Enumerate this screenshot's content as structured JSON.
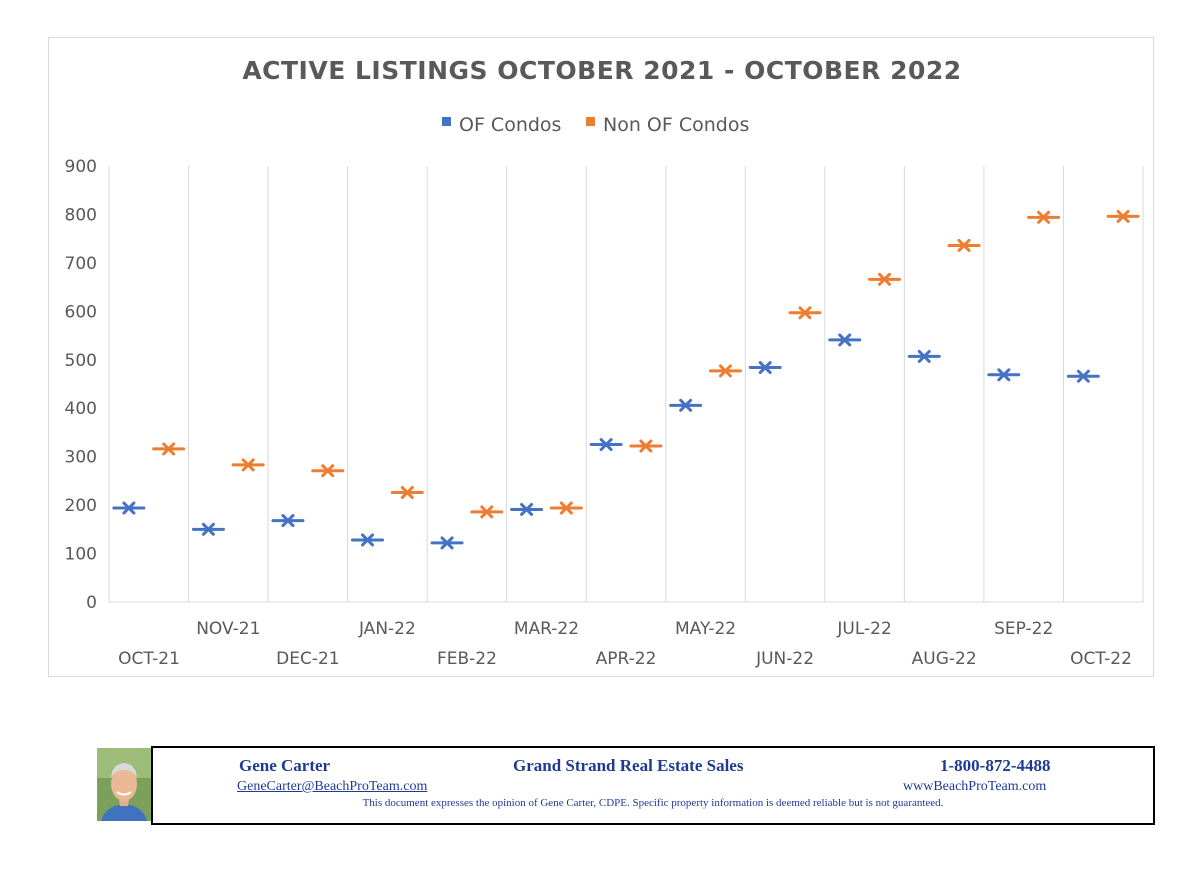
{
  "chart_data": {
    "type": "scatter",
    "title": "ACTIVE LISTINGS  OCTOBER 2021 - OCTOBER 2022",
    "categories": [
      "OCT-21",
      "NOV-21",
      "DEC-21",
      "JAN-22",
      "FEB-22",
      "MAR-22",
      "APR-22",
      "MAY-22",
      "JUN-22",
      "JUL-22",
      "AUG-22",
      "SEP-22",
      "OCT-22"
    ],
    "series": [
      {
        "name": "OF Condos",
        "color": "#4472c4",
        "values": [
          194,
          150,
          168,
          128,
          122,
          191,
          325,
          406,
          484,
          541,
          507,
          469,
          466
        ]
      },
      {
        "name": "Non OF Condos",
        "color": "#ed7d31",
        "values": [
          316,
          283,
          271,
          226,
          186,
          194,
          322,
          477,
          597,
          666,
          736,
          794,
          796
        ]
      }
    ],
    "ylim": [
      0,
      900
    ],
    "yticks": [
      "0",
      "100",
      "200",
      "300",
      "400",
      "500",
      "600",
      "700",
      "800",
      "900"
    ],
    "grid": "vertical",
    "legend": "top",
    "marker": "x-cross"
  },
  "footer": {
    "name": "Gene Carter",
    "company": "Grand Strand Real Estate Sales",
    "phone": "1-800-872-4488",
    "email": "GeneCarter@BeachProTeam.com",
    "website": "wwwBeachProTeam.com",
    "disclaimer": "This document expresses the opinion of Gene Carter, CDPE.  Specific property information is deemed reliable but is not guaranteed."
  }
}
